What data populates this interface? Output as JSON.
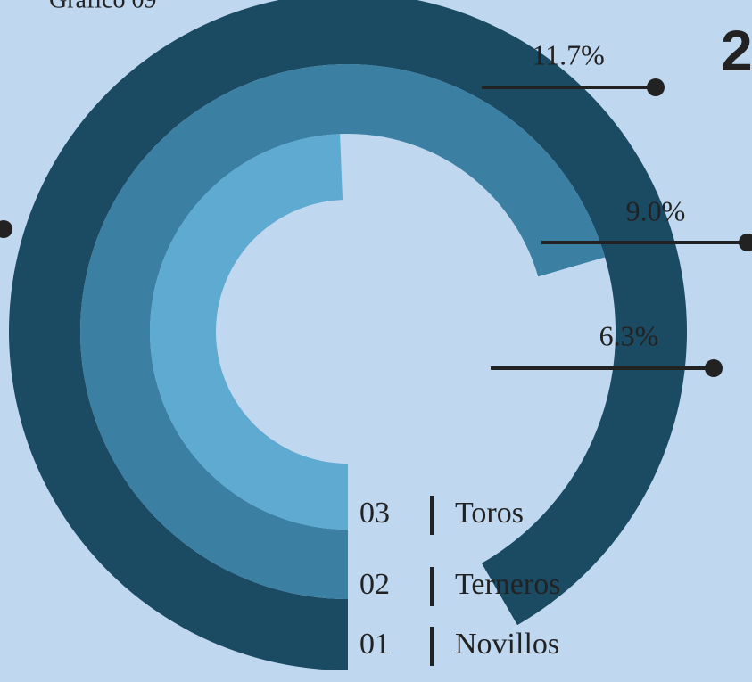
{
  "chart_data": {
    "type": "radial_bar",
    "title": "Gráfico 09",
    "annotation": "2",
    "categories": [
      "Novillos",
      "Terneros",
      "Toros"
    ],
    "codes": [
      "01",
      "02",
      "03"
    ],
    "values": [
      11.7,
      9,
      6.3
    ],
    "value_labels": [
      "11.7%",
      "9.0%",
      "6.3%"
    ],
    "colors": [
      "#1b4a63",
      "#3b7fa3",
      "#5eaad1"
    ]
  }
}
